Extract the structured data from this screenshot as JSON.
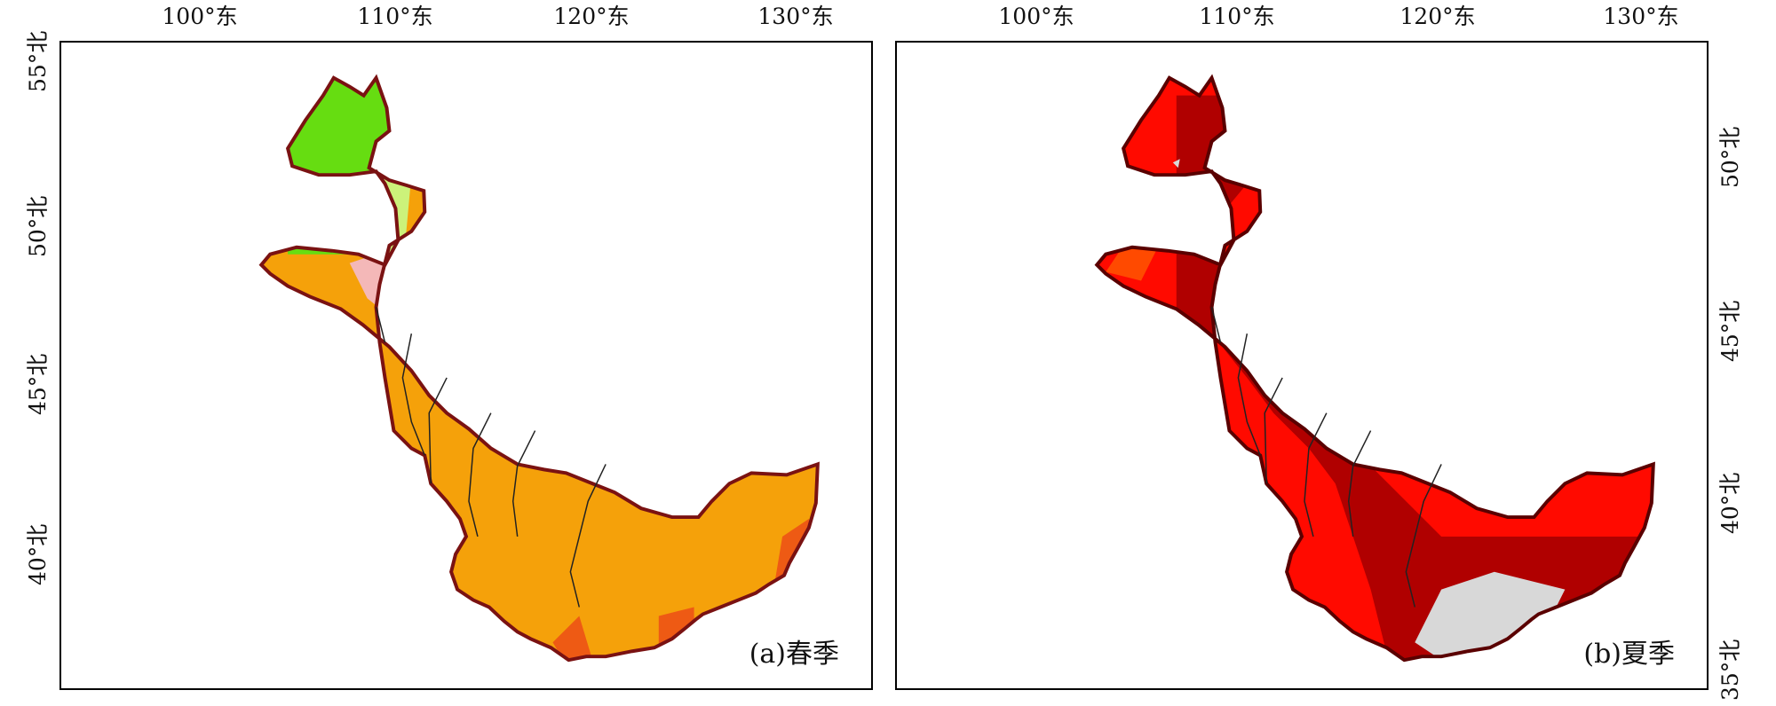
{
  "axes": {
    "lon_ticks": [
      "100°东",
      "110°东",
      "120°东",
      "130°东"
    ],
    "lat_ticks_left": [
      "55°北",
      "50°北",
      "45°北",
      "40°北"
    ],
    "lat_ticks_right": [
      "50°北",
      "45°北",
      "40°北",
      "35°北"
    ]
  },
  "panels": [
    {
      "label": "(a)春季",
      "colors": [
        "#66dd11",
        "#ccf27a",
        "#f4b8b8",
        "#f5a10a",
        "#ee5a14"
      ],
      "boundary_color": "#7a1212"
    },
    {
      "label": "(b)夏季",
      "colors": [
        "#ff0a00",
        "#b00000",
        "#ff4a00",
        "#d8d8d8"
      ],
      "boundary_color": "#5a0000"
    }
  ]
}
